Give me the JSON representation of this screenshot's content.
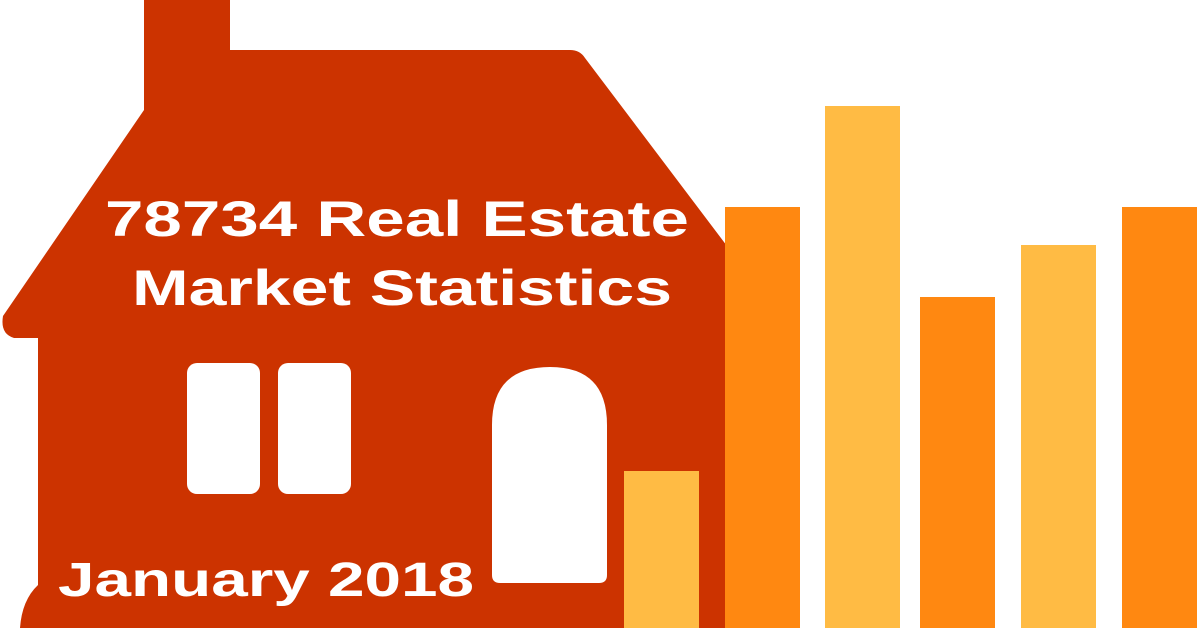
{
  "title": {
    "line1": "78734 Real Estate",
    "line2": "Market Statistics"
  },
  "date": "January 2018",
  "colors": {
    "house": "#CC3300",
    "bar_orange": "#FF8811",
    "bar_yellow": "#FFBB44",
    "text": "#FFFFFF"
  },
  "icons": [
    "house-icon",
    "bar-chart-graphic"
  ]
}
